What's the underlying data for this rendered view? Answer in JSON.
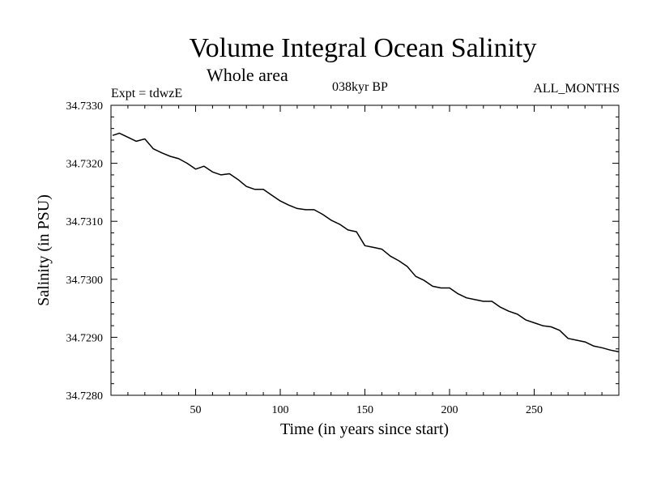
{
  "header": {
    "title": "Volume Integral Ocean Salinity",
    "subtitle": "Whole area",
    "experiment": "Expt = tdwzE",
    "period": "038kyr BP",
    "months": "ALL_MONTHS"
  },
  "chart_data": {
    "type": "line",
    "title": "Volume Integral Ocean Salinity",
    "subtitle": "Whole area",
    "xlabel": "Time (in years since start)",
    "ylabel": "Salinity (in PSU)",
    "xlim": [
      0,
      300
    ],
    "ylim": [
      34.728,
      34.733
    ],
    "x_ticks": [
      50,
      100,
      150,
      200,
      250
    ],
    "x_tick_labels": [
      "50",
      "100",
      "150",
      "200",
      "250"
    ],
    "y_ticks": [
      34.728,
      34.729,
      34.73,
      34.731,
      34.732,
      34.733
    ],
    "y_tick_labels": [
      "34.7280",
      "34.7290",
      "34.7300",
      "34.7310",
      "34.7320",
      "34.7330"
    ],
    "grid": false,
    "series": [
      {
        "color": "#000000",
        "x": [
          1,
          5,
          10,
          15,
          20,
          25,
          30,
          35,
          40,
          45,
          50,
          55,
          60,
          65,
          70,
          75,
          80,
          85,
          90,
          95,
          100,
          105,
          110,
          115,
          120,
          125,
          130,
          135,
          140,
          145,
          150,
          155,
          160,
          165,
          170,
          175,
          180,
          185,
          190,
          195,
          200,
          205,
          210,
          215,
          220,
          225,
          230,
          235,
          240,
          245,
          250,
          255,
          260,
          265,
          270,
          275,
          280,
          285,
          290,
          295,
          300
        ],
        "values": [
          34.73248,
          34.73252,
          34.73245,
          34.73238,
          34.73242,
          34.73225,
          34.73218,
          34.73212,
          34.73208,
          34.732,
          34.7319,
          34.73195,
          34.73185,
          34.7318,
          34.73182,
          34.73172,
          34.7316,
          34.73155,
          34.73155,
          34.73145,
          34.73135,
          34.73128,
          34.73122,
          34.7312,
          34.7312,
          34.73112,
          34.73102,
          34.73095,
          34.73085,
          34.73082,
          34.73058,
          34.73055,
          34.73052,
          34.7304,
          34.73032,
          34.73022,
          34.73005,
          34.72998,
          34.72988,
          34.72985,
          34.72985,
          34.72975,
          34.72968,
          34.72965,
          34.72962,
          34.72962,
          34.72952,
          34.72945,
          34.7294,
          34.7293,
          34.72925,
          34.7292,
          34.72918,
          34.72912,
          34.72898,
          34.72895,
          34.72892,
          34.72885,
          34.72882,
          34.72878,
          34.72875
        ]
      }
    ]
  }
}
